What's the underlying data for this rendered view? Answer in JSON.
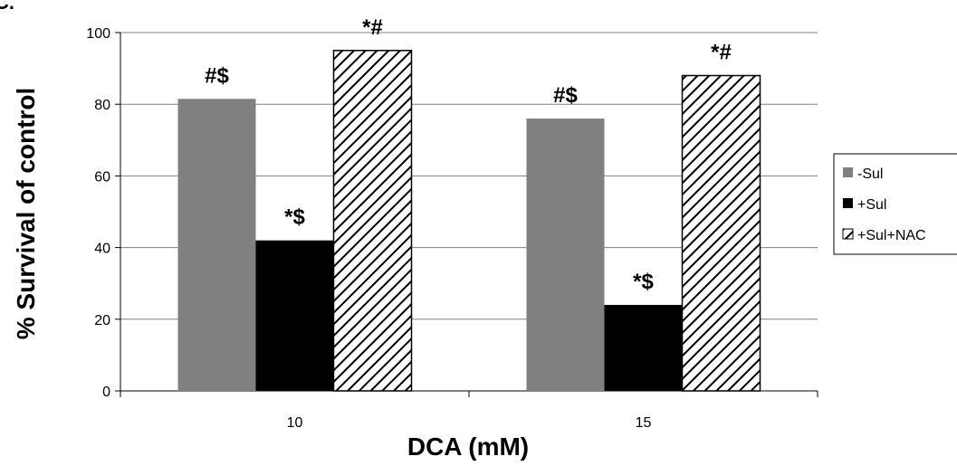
{
  "chart_data": {
    "type": "bar",
    "panel_label": "C.",
    "title": "",
    "xlabel": "DCA (mM)",
    "ylabel": "% Survival of control",
    "ylim": [
      0,
      100
    ],
    "yticks": [
      0,
      20,
      40,
      60,
      80,
      100
    ],
    "grid": true,
    "legend_position": "right",
    "categories": [
      "10",
      "15"
    ],
    "series": [
      {
        "name": "-Sul",
        "values": [
          81.5,
          76
        ],
        "annotations": [
          "#$",
          "#$"
        ],
        "color": "#808080",
        "pattern": "solid"
      },
      {
        "name": "+Sul",
        "values": [
          42,
          24
        ],
        "annotations": [
          "*$",
          "*$"
        ],
        "color": "#000000",
        "pattern": "solid"
      },
      {
        "name": "+Sul+NAC",
        "values": [
          95,
          88
        ],
        "annotations": [
          "*#",
          "*#"
        ],
        "color": "#ffffff",
        "pattern": "diagonal-hatch"
      }
    ]
  }
}
